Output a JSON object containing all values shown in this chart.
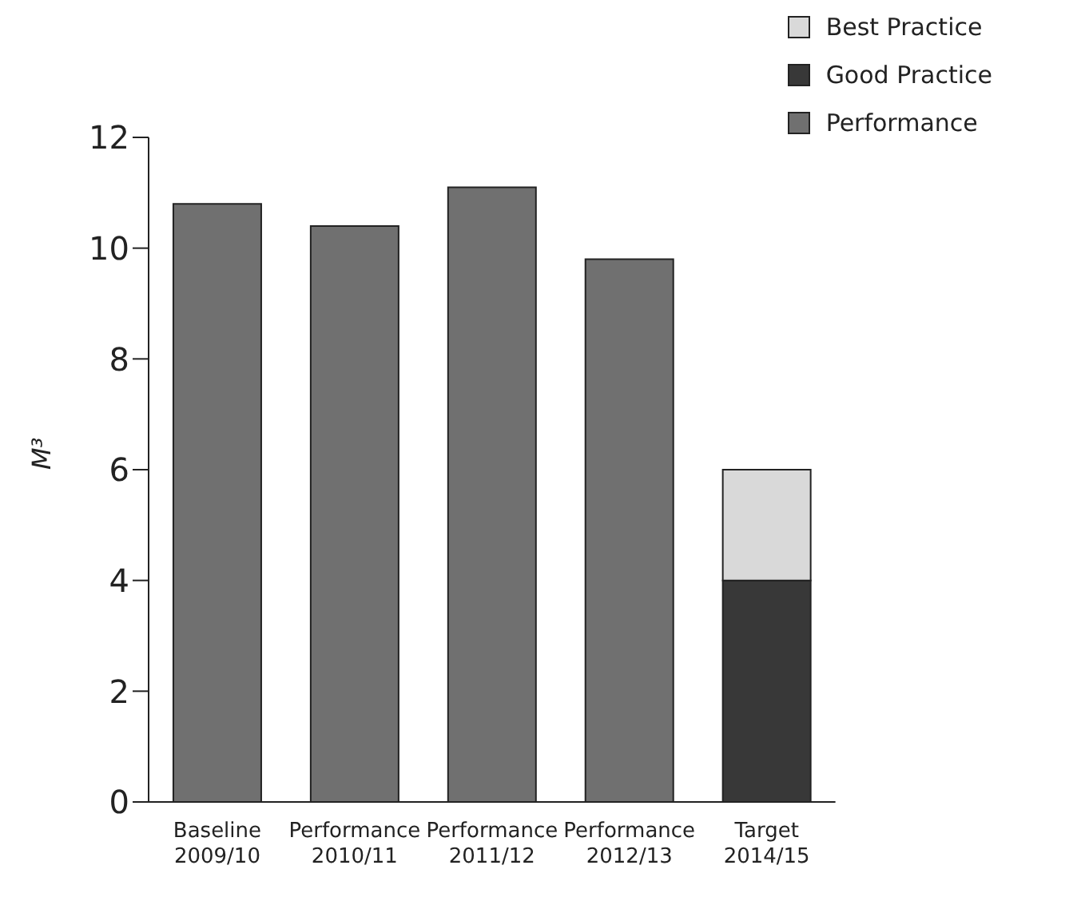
{
  "chart_data": {
    "type": "bar",
    "stacked": true,
    "ylabel": "M³",
    "categories": [
      "Baseline\n2009/10",
      "Performance\n2010/11",
      "Performance\n2011/12",
      "Performance\n2012/13",
      "Target\n2014/15"
    ],
    "series": [
      {
        "name": "Performance",
        "color": "#707070",
        "values": [
          10.8,
          10.4,
          11.1,
          9.8,
          null
        ]
      },
      {
        "name": "Good Practice",
        "color": "#383838",
        "values": [
          null,
          null,
          null,
          null,
          4
        ]
      },
      {
        "name": "Best Practice",
        "color": "#d9d9d9",
        "values": [
          null,
          null,
          null,
          null,
          2
        ]
      }
    ],
    "ylim": [
      0,
      12
    ],
    "yticks": [
      0,
      2,
      4,
      6,
      8,
      10,
      12
    ],
    "grid": false,
    "legend": "top right"
  }
}
